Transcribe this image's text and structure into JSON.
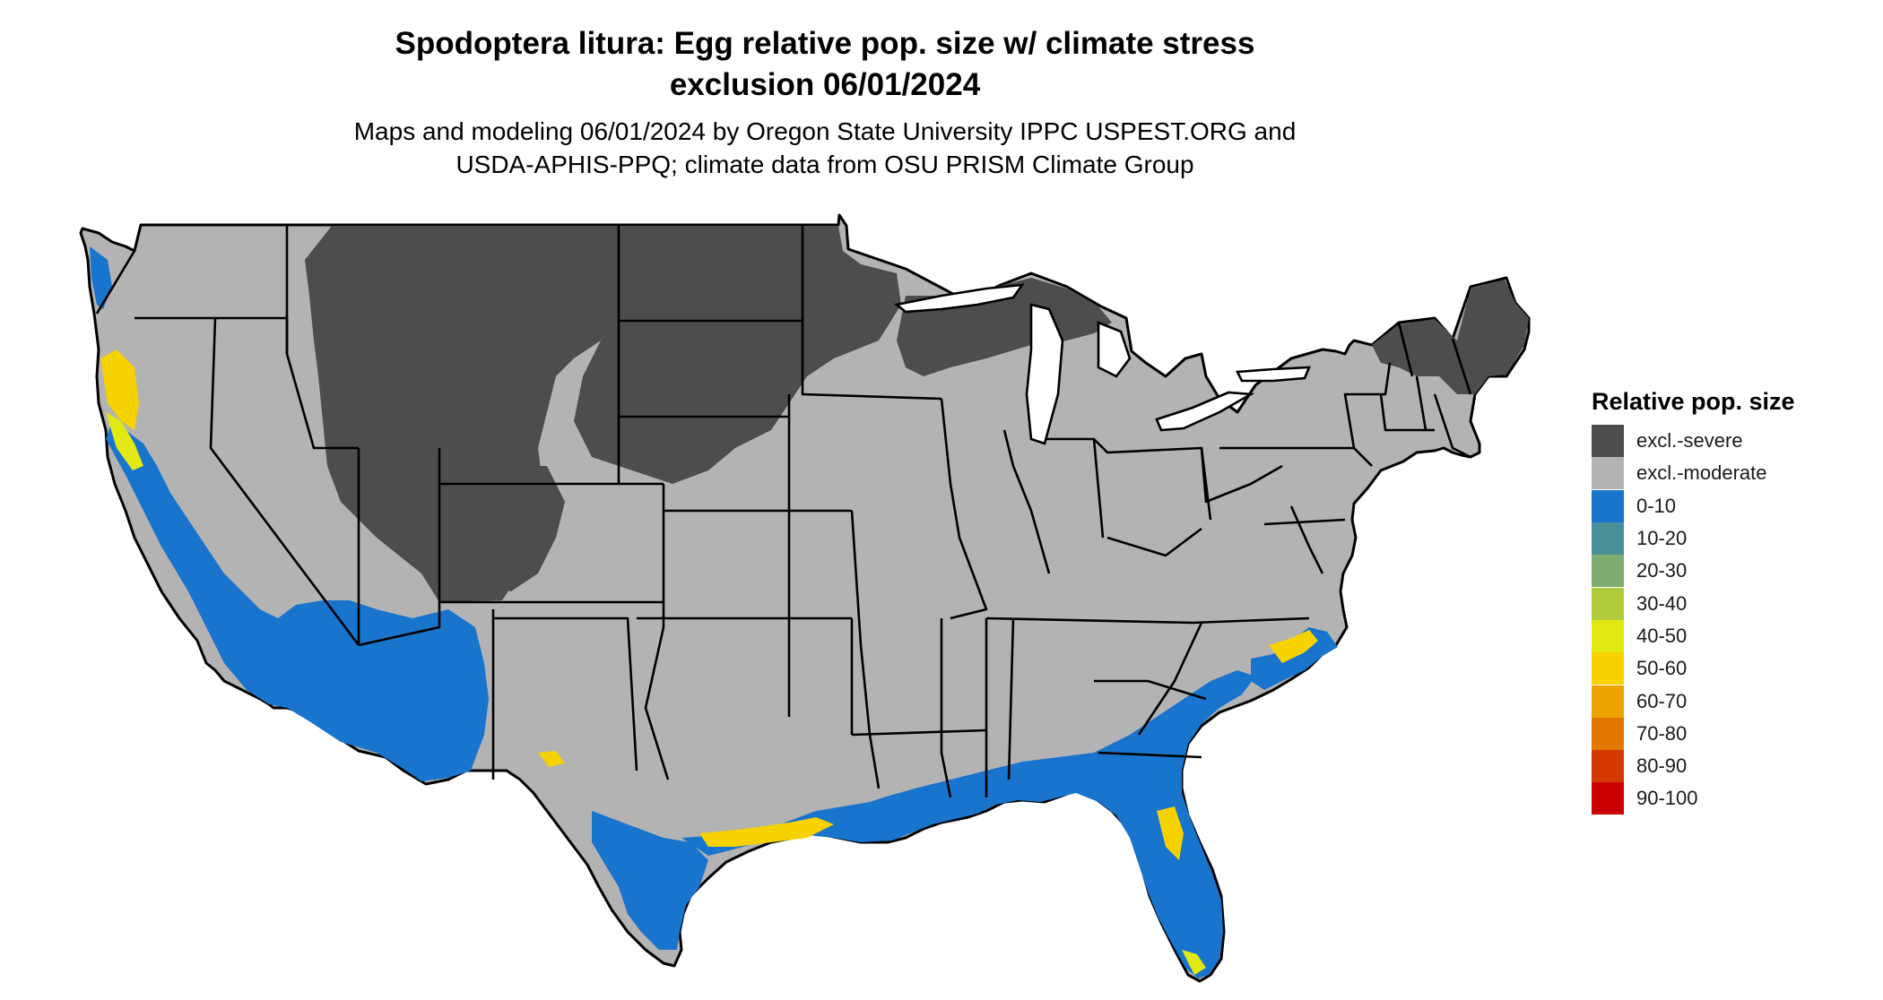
{
  "map": {
    "title_line1": "Spodoptera litura: Egg relative pop. size w/ climate stress",
    "title_line2": "exclusion 06/01/2024",
    "subtitle_line1": "Maps and modeling 06/01/2024 by Oregon State University IPPC USPEST.ORG and",
    "subtitle_line2": "USDA-APHIS-PPQ; climate data from OSU PRISM Climate Group",
    "region": "Contiguous United States"
  },
  "legend": {
    "title": "Relative pop. size",
    "items": [
      {
        "label": "excl.-severe",
        "color": "#4d4d4d"
      },
      {
        "label": "excl.-moderate",
        "color": "#b3b3b3"
      },
      {
        "label": "0-10",
        "color": "#1874cd"
      },
      {
        "label": "10-20",
        "color": "#4a9099"
      },
      {
        "label": "20-30",
        "color": "#7cac6e"
      },
      {
        "label": "30-40",
        "color": "#b0cc3c"
      },
      {
        "label": "40-50",
        "color": "#e2e812"
      },
      {
        "label": "50-60",
        "color": "#f5d200"
      },
      {
        "label": "60-70",
        "color": "#eea400"
      },
      {
        "label": "70-80",
        "color": "#e07800"
      },
      {
        "label": "80-90",
        "color": "#d43a00"
      },
      {
        "label": "90-100",
        "color": "#cc0000"
      }
    ]
  }
}
